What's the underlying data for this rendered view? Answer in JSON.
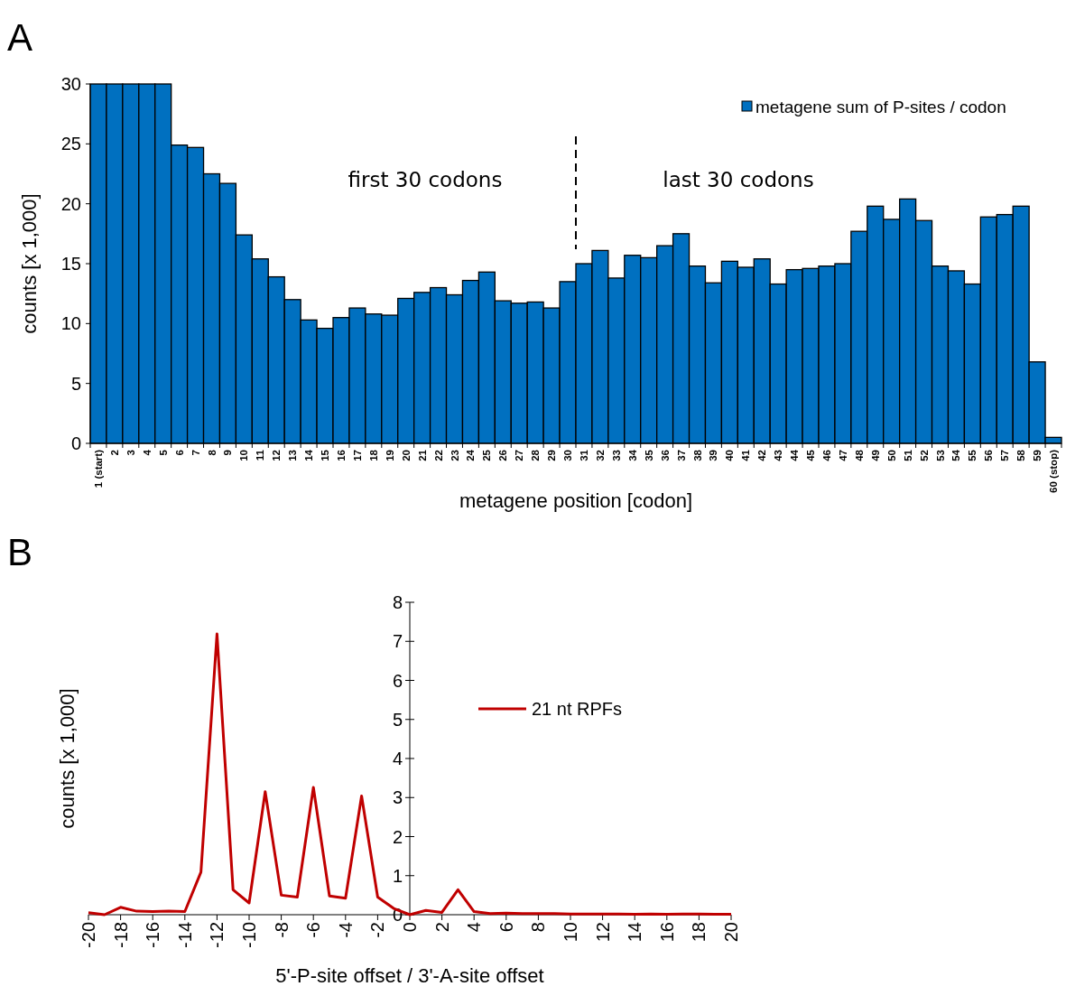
{
  "chart_data": [
    {
      "type": "bar",
      "title": "A",
      "xlabel": "metagene position [codon]",
      "ylabel": "counts [x 1,000]",
      "categories": [
        "1 (start)",
        "2",
        "3",
        "4",
        "5",
        "6",
        "7",
        "8",
        "9",
        "10",
        "11",
        "12",
        "13",
        "14",
        "15",
        "16",
        "17",
        "18",
        "19",
        "20",
        "21",
        "22",
        "23",
        "24",
        "25",
        "26",
        "27",
        "28",
        "29",
        "30",
        "31",
        "32",
        "33",
        "34",
        "35",
        "36",
        "37",
        "38",
        "39",
        "40",
        "41",
        "42",
        "43",
        "44",
        "45",
        "46",
        "47",
        "48",
        "49",
        "50",
        "51",
        "52",
        "53",
        "54",
        "55",
        "56",
        "57",
        "58",
        "59",
        "60 (stop)"
      ],
      "series": [
        {
          "name": "metagene sum of P-sites / codon",
          "color": "#0070c0",
          "values": [
            30,
            30,
            30,
            30,
            30,
            24.9,
            24.7,
            22.5,
            21.7,
            17.4,
            15.4,
            13.9,
            12.0,
            10.3,
            9.6,
            10.5,
            11.3,
            10.8,
            10.7,
            12.1,
            12.6,
            13.0,
            12.4,
            13.6,
            14.3,
            11.9,
            11.7,
            11.8,
            11.3,
            13.5,
            15.0,
            16.1,
            13.8,
            15.7,
            15.5,
            16.5,
            17.5,
            14.8,
            13.4,
            15.2,
            14.7,
            15.4,
            13.3,
            14.5,
            14.6,
            14.8,
            15.0,
            17.7,
            19.8,
            18.7,
            20.4,
            18.6,
            14.8,
            14.4,
            13.3,
            18.9,
            19.1,
            19.8,
            6.8,
            0.5
          ]
        }
      ],
      "ylim": [
        0,
        30
      ],
      "yticks": [
        0,
        5,
        10,
        15,
        20,
        25,
        30
      ],
      "grid": false,
      "legend": "top right",
      "annotations": [
        "first 30 codons",
        "last 30 codons"
      ]
    },
    {
      "type": "line",
      "title": "B",
      "xlabel": "5'-P-site offset / 3'-A-site offset",
      "ylabel": "counts [x 1,000]",
      "x": [
        -20,
        -19,
        -18,
        -17,
        -16,
        -15,
        -14,
        -13,
        -12,
        -11,
        -10,
        -9,
        -8,
        -7,
        -6,
        -5,
        -4,
        -3,
        -2,
        -1,
        0,
        1,
        2,
        3,
        4,
        5,
        6,
        7,
        8,
        9,
        10,
        11,
        12,
        13,
        14,
        15,
        16,
        17,
        18,
        19,
        20
      ],
      "series": [
        {
          "name": "21 nt RPFs",
          "color": "#c00000",
          "values": [
            0.05,
            0,
            0.19,
            0.09,
            0.08,
            0.09,
            0.08,
            1.09,
            7.19,
            0.64,
            0.3,
            3.15,
            0.5,
            0.45,
            3.26,
            0.48,
            0.42,
            3.04,
            0.45,
            0.16,
            0,
            0.11,
            0.06,
            0.64,
            0.08,
            0.03,
            0.04,
            0.03,
            0.03,
            0.03,
            0.02,
            0.02,
            0.02,
            0.02,
            0.01,
            0.02,
            0.01,
            0.02,
            0.02,
            0.01,
            0.01
          ]
        }
      ],
      "xlim": [
        -20,
        20
      ],
      "xticks": [
        -20,
        -18,
        -16,
        -14,
        -12,
        -10,
        -8,
        -6,
        -4,
        -2,
        0,
        2,
        4,
        6,
        8,
        10,
        12,
        14,
        16,
        18,
        20
      ],
      "ylim": [
        0,
        8
      ],
      "yticks": [
        0,
        1,
        2,
        3,
        4,
        5,
        6,
        7,
        8
      ],
      "grid": false,
      "legend": "right",
      "marker": "none",
      "line_style": "solid"
    }
  ]
}
